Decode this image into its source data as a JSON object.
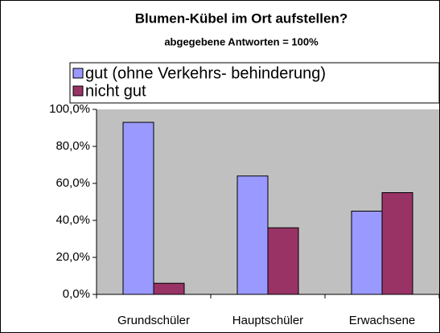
{
  "chart_data": {
    "type": "bar",
    "title": "Blumen-Kübel im Ort aufstellen?",
    "subtitle": "abgegebene Antworten  = 100%",
    "categories": [
      "Grundschüler",
      "Hauptschüler",
      "Erwachsene"
    ],
    "series": [
      {
        "name": "gut (ohne Verkehrs- behinderung)",
        "color": "#9999ff",
        "values": [
          93,
          64,
          45
        ]
      },
      {
        "name": "nicht gut",
        "color": "#993366",
        "values": [
          6,
          36,
          55
        ]
      }
    ],
    "ylim": [
      0,
      100
    ],
    "yticks": [
      {
        "value": 0,
        "label": "0,0%"
      },
      {
        "value": 20,
        "label": "20,0%"
      },
      {
        "value": 40,
        "label": "40,0%"
      },
      {
        "value": 60,
        "label": "60,0%"
      },
      {
        "value": 80,
        "label": "80,0%"
      },
      {
        "value": 100,
        "label": "100,0%"
      }
    ],
    "legend": "top"
  }
}
